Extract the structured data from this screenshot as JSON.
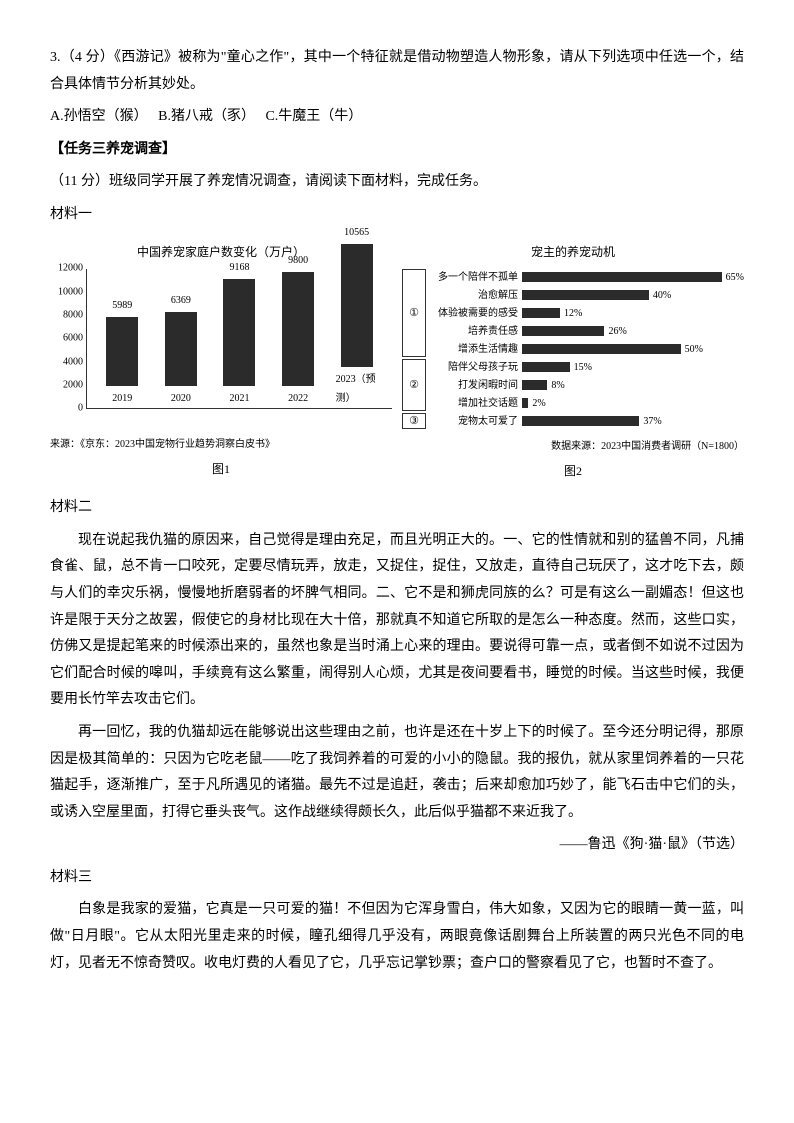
{
  "q3": {
    "text": "3.（4 分）《西游记》被称为\"童心之作\"，其中一个特征就是借动物塑造人物形象，请从下列选项中任选一个，结合具体情节分析其妙处。",
    "optA": "A.孙悟空（猴）",
    "optB": "B.猪八戒（豕）",
    "optC": "C.牛魔王（牛）"
  },
  "task3": {
    "heading": "【任务三养宠调查】",
    "intro": "（11 分）班级同学开展了养宠情况调查，请阅读下面材料，完成任务。"
  },
  "mat1": {
    "label": "材料一"
  },
  "mat2": {
    "label": "材料二"
  },
  "mat3": {
    "label": "材料三"
  },
  "chart1": {
    "type": "bar",
    "title": "中国养宠家庭户数变化（万户）",
    "categories": [
      "2019",
      "2020",
      "2021",
      "2022",
      "2023（预测）"
    ],
    "values": [
      5989,
      6369,
      9168,
      9800,
      10565
    ],
    "ylim": [
      0,
      12000
    ],
    "ytick_step": 2000,
    "bar_color": "#2b2b2b",
    "background_color": "#ffffff",
    "source": "来源：《京东：2023中国宠物行业趋势洞察白皮书》",
    "caption": "图1",
    "label_fontsize": 10
  },
  "chart2": {
    "type": "hbar",
    "title": "宠主的养宠动机",
    "groups": [
      {
        "id": "①",
        "span": 5
      },
      {
        "id": "②",
        "span": 3
      },
      {
        "id": "③",
        "span": 1
      }
    ],
    "items": [
      {
        "label": "多一个陪伴不孤单",
        "value": 65
      },
      {
        "label": "治愈解压",
        "value": 40
      },
      {
        "label": "体验被需要的感受",
        "value": 12
      },
      {
        "label": "培养责任感",
        "value": 26
      },
      {
        "label": "增添生活情趣",
        "value": 50
      },
      {
        "label": "陪伴父母孩子玩",
        "value": 15
      },
      {
        "label": "打发闲暇时间",
        "value": 8
      },
      {
        "label": "增加社交话题",
        "value": 2
      },
      {
        "label": "宠物太可爱了",
        "value": 37
      }
    ],
    "max": 70,
    "bar_color": "#2b2b2b",
    "source": "数据来源：2023中国消费者调研（N=1800）",
    "caption": "图2",
    "label_fontsize": 10
  },
  "passage2": {
    "p1": "现在说起我仇猫的原因来，自己觉得是理由充足，而且光明正大的。一、它的性情就和别的猛兽不同，凡捕食雀、鼠，总不肯一口咬死，定要尽情玩弄，放走，又捉住，捉住，又放走，直待自己玩厌了，这才吃下去，颇与人们的幸灾乐祸，慢慢地折磨弱者的坏脾气相同。二、它不是和狮虎同族的么？可是有这么一副媚态！但这也许是限于天分之故罢，假使它的身材比现在大十倍，那就真不知道它所取的是怎么一种态度。然而，这些口实，仿佛又是提起笔来的时候添出来的，虽然也象是当时涌上心来的理由。要说得可靠一点，或者倒不如说不过因为它们配合时候的嗥叫，手续竟有这么繁重，闹得别人心烦，尤其是夜间要看书，睡觉的时候。当这些时候，我便要用长竹竿去攻击它们。",
    "p2": "再一回忆，我的仇猫却远在能够说出这些理由之前，也许是还在十岁上下的时候了。至今还分明记得，那原因是极其简单的：只因为它吃老鼠——吃了我饲养着的可爱的小小的隐鼠。我的报仇，就从家里饲养着的一只花猫起手，逐渐推广，至于凡所遇见的诸猫。最先不过是追赶，袭击；后来却愈加巧妙了，能飞石击中它们的头，或诱入空屋里面，打得它垂头丧气。这作战继续得颇长久，此后似乎猫都不来近我了。",
    "attribution": "——鲁迅《狗·猫·鼠》（节选）"
  },
  "passage3": {
    "p1": "白象是我家的爱猫，它真是一只可爱的猫！不但因为它浑身雪白，伟大如象，又因为它的眼睛一黄一蓝，叫做\"日月眼\"。它从太阳光里走来的时候，瞳孔细得几乎没有，两眼竟像话剧舞台上所装置的两只光色不同的电灯，见者无不惊奇赞叹。收电灯费的人看见了它，几乎忘记掌钞票；查户口的警察看见了它，也暂时不查了。"
  }
}
